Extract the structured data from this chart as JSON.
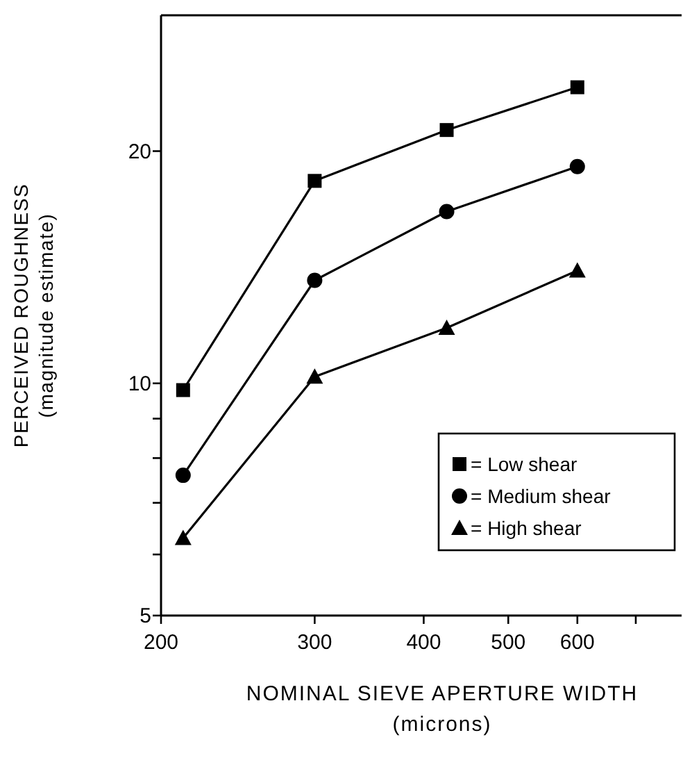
{
  "chart_data": {
    "type": "line",
    "xlabel": "NOMINAL SIEVE APERTURE WIDTH\n(microns)",
    "ylabel": "PERCEIVED ROUGHNESS\n(magnitude estimate)",
    "log": "xy",
    "xlim": [
      200,
      790
    ],
    "xticks": [
      200,
      300,
      400,
      500,
      600,
      {
        "value": 700,
        "label": null
      }
    ],
    "ylim": [
      5,
      30
    ],
    "yticks": [
      5,
      {
        "value": 6,
        "label": null
      },
      {
        "value": 7,
        "label": null
      },
      {
        "value": 8,
        "label": null
      },
      {
        "value": 9,
        "label": null
      },
      10,
      20
    ],
    "x": [
      212,
      300,
      425,
      600
    ],
    "grid": false,
    "legend": "bottom right",
    "line_style": "solid",
    "series": [
      {
        "name": "= Low shear",
        "color": "#000000",
        "marker": "square",
        "values": [
          9.8,
          18.3,
          21.3,
          24.2
        ]
      },
      {
        "name": "= Medium shear",
        "color": "#000000",
        "marker": "circle",
        "values": [
          7.6,
          13.6,
          16.7,
          19.1
        ]
      },
      {
        "name": "= High shear",
        "color": "#000000",
        "marker": "triangle",
        "values": [
          6.3,
          10.2,
          11.8,
          14
        ]
      }
    ]
  }
}
